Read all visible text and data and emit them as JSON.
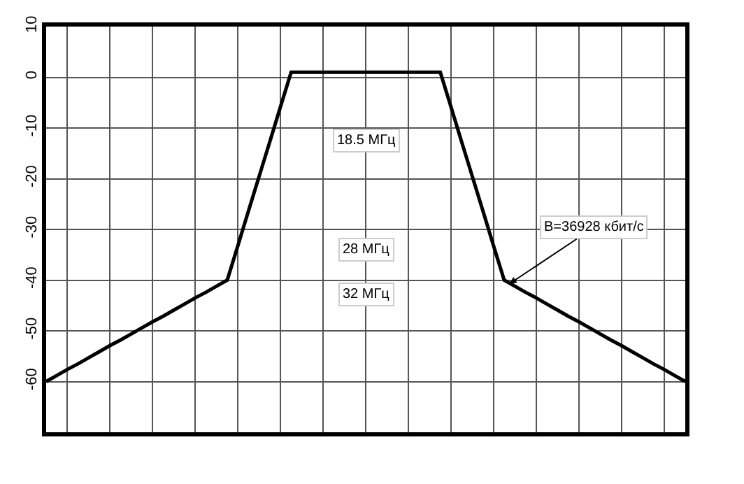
{
  "chart_data": {
    "type": "line",
    "categories": [
      null,
      null,
      null,
      null,
      null,
      null,
      null,
      null,
      null,
      null,
      null,
      null,
      null,
      null,
      null,
      null,
      null,
      null,
      null,
      null,
      null,
      null,
      null,
      null,
      null,
      null,
      null,
      null,
      null,
      null,
      null,
      null,
      null,
      null,
      null,
      null,
      null,
      null,
      null,
      null,
      null,
      null,
      null,
      null,
      null,
      null,
      null,
      null,
      null,
      null,
      null,
      null,
      null,
      null,
      null,
      null,
      null,
      null,
      null,
      null,
      null
    ],
    "series": [
      {
        "color": "#000000",
        "values": [
          -60,
          -58.8,
          -57.6,
          -56.5,
          -55.3,
          -54.1,
          -52.9,
          -51.8,
          -50.6,
          -49.4,
          -48.2,
          -47.1,
          -45.9,
          -44.7,
          -43.5,
          -42.4,
          -41.2,
          -40,
          -33.2,
          -26.3,
          -19.5,
          -12.7,
          -5.8,
          1,
          1,
          1,
          1,
          1,
          1,
          1,
          1,
          1,
          1,
          1,
          1,
          1,
          1,
          1,
          -5.8,
          -12.7,
          -19.5,
          -26.3,
          -33.2,
          -40,
          -41.2,
          -42.4,
          -43.5,
          -44.7,
          -45.9,
          -47.1,
          -48.2,
          -49.4,
          -50.6,
          -51.8,
          -52.9,
          -54.1,
          -55.3,
          -56.5,
          -57.6,
          -58.8,
          -60
        ]
      }
    ],
    "ylim": [
      -70,
      10
    ],
    "yticks": [
      10,
      0,
      -10,
      -20,
      -30,
      -40,
      -50,
      -60
    ],
    "tick_labels": "y",
    "grid": true,
    "annotations": [
      "18.5 МГц",
      "28 МГц",
      "32 МГц",
      "B=36928 кбит/с"
    ]
  }
}
